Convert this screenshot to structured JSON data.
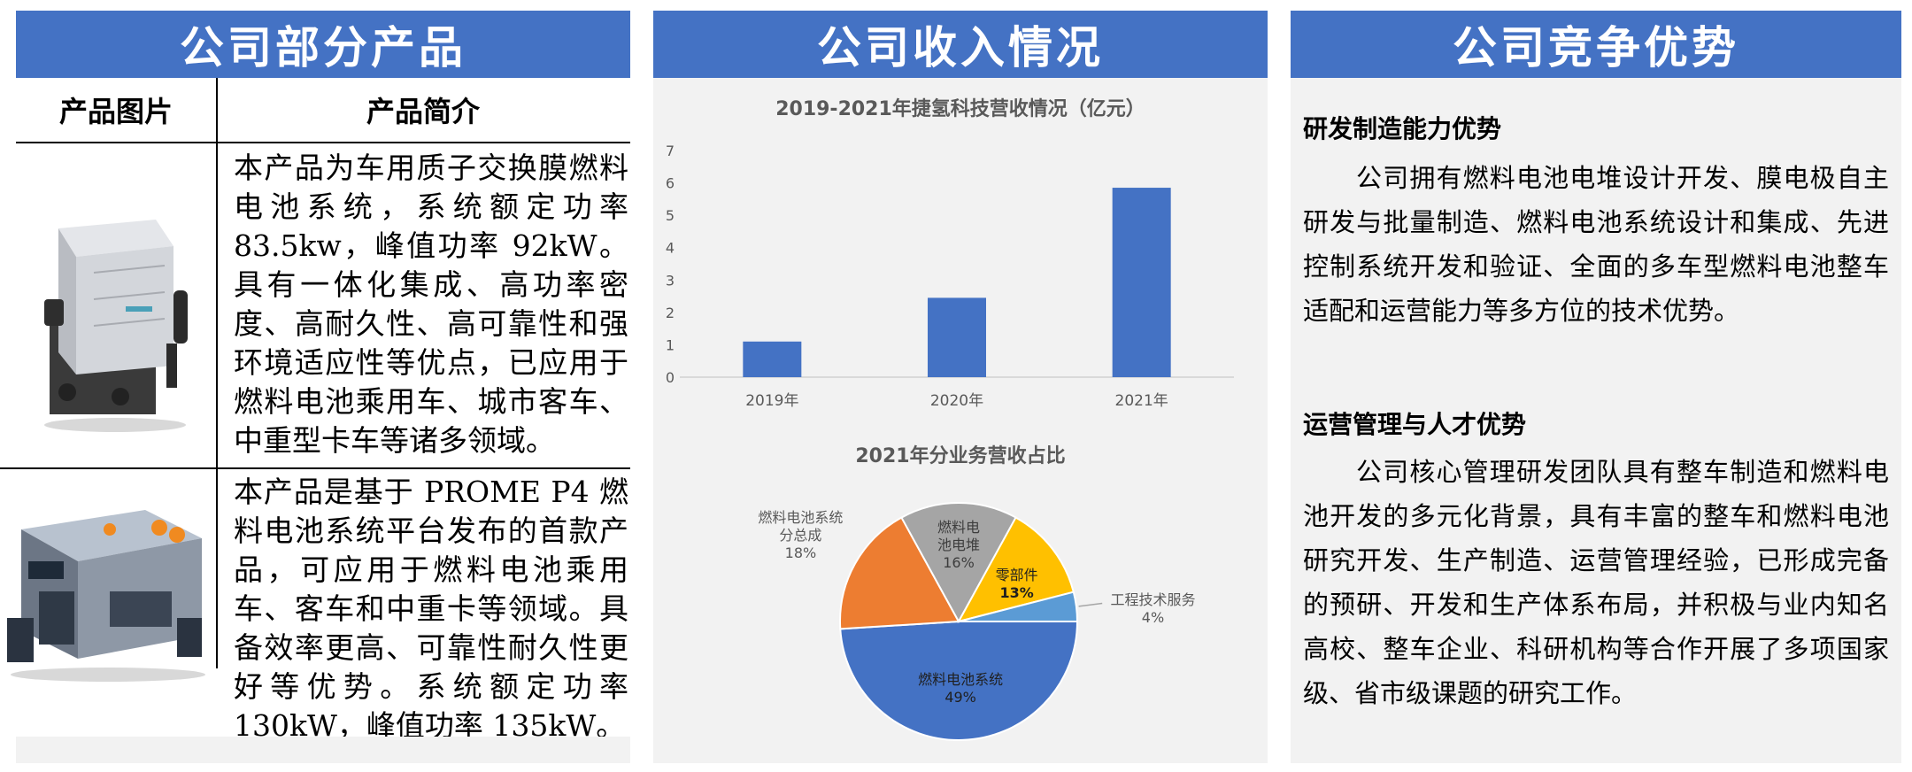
{
  "panels": {
    "products": {
      "title": "公司部分产品",
      "headers": {
        "image": "产品图片",
        "intro": "产品简介"
      },
      "items": [
        {
          "text": "本产品为车用质子交换膜燃料电池系统，系统额定功率 83.5kw，峰值功率 92kW。具有一体化集成、高功率密度、高耐久性、高可靠性和强环境适应性等优点，已应用于燃料电池乘用车、城市客车、中重型卡车等诸多领域。"
        },
        {
          "text": "本产品是基于 PROME P4 燃料电池系统平台发布的首款产品，可应用于燃料电池乘用车、客车和中重卡等领域。具备效率更高、可靠性耐久性更好等优势。系统额定功率 130kW，峰值功率 135kW。"
        }
      ]
    },
    "revenue": {
      "title": "公司收入情况"
    },
    "advantages": {
      "title": "公司竞争优势",
      "sections": [
        {
          "heading": "研发制造能力优势",
          "body": "公司拥有燃料电池电堆设计开发、膜电极自主研发与批量制造、燃料电池系统设计和集成、先进控制系统开发和验证、全面的多车型燃料电池整车适配和运营能力等多方位的技术优势。"
        },
        {
          "heading": "运营管理与人才优势",
          "body": "公司核心管理研发团队具有整车制造和燃料电池开发的多元化背景，具有丰富的整车和燃料电池研究开发、生产制造、运营管理经验，已形成完备的预研、开发和生产体系布局，并积极与业内知名高校、整车企业、科研机构等合作开展了多项国家级、省市级课题的研究工作。"
        }
      ]
    }
  },
  "chart_data": [
    {
      "type": "bar",
      "title": "2019-2021年捷氢科技营收情况（亿元）",
      "categories": [
        "2019年",
        "2020年",
        "2021年"
      ],
      "values": [
        1.1,
        2.45,
        5.85
      ],
      "ylim": [
        0,
        7
      ],
      "yticks": [
        "0",
        "1",
        "2",
        "3",
        "4",
        "5",
        "6",
        "7"
      ],
      "grid": false,
      "color": "#4472c4"
    },
    {
      "type": "pie",
      "title": "2021年分业务营收占比",
      "slices": [
        {
          "label": "燃料电池系统",
          "value": 49,
          "pct": "49%",
          "color": "#4472c4"
        },
        {
          "label": "燃料电池系统分总成",
          "label_lines": [
            "燃料电池系统",
            "分总成"
          ],
          "value": 18,
          "pct": "18%",
          "color": "#ed7d31"
        },
        {
          "label": "燃料电池电堆",
          "label_lines": [
            "燃料电",
            "池电堆"
          ],
          "value": 16,
          "pct": "16%",
          "color": "#a5a5a5"
        },
        {
          "label": "零部件",
          "value": 13,
          "pct": "13%",
          "color": "#ffc000"
        },
        {
          "label": "工程技术服务",
          "value": 4,
          "pct": "4%",
          "color": "#5b9bd5"
        }
      ]
    }
  ]
}
